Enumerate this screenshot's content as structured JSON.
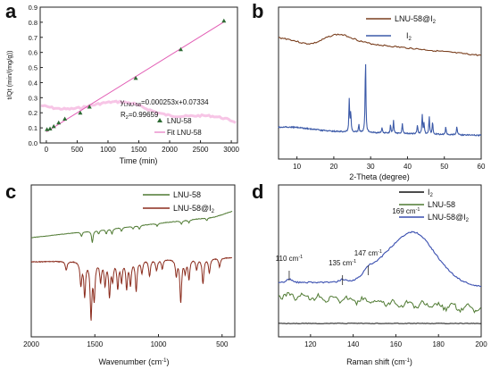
{
  "chart_data": [
    {
      "panel": "a",
      "type": "scatter",
      "xlabel": "Time (min)",
      "ylabel": "t/Qt (min/(mg/g))",
      "xlim": [
        -100,
        3100
      ],
      "ylim": [
        0,
        0.9
      ],
      "xticks": [
        0,
        500,
        1000,
        1500,
        2000,
        2500,
        3000
      ],
      "yticks": [
        0.0,
        0.1,
        0.2,
        0.3,
        0.4,
        0.5,
        0.6,
        0.7,
        0.8,
        0.9
      ],
      "equation": "y_LNU-58=0.000253x+0.07334",
      "equation_main": "y",
      "equation_sub": "LNU-58",
      "equation_rest": "=0.000253x+0.07334",
      "r2": "R2=0.99659",
      "r2_main": "R",
      "r2_sub": "2",
      "r2_rest": "=0.99659",
      "fit": {
        "slope": 0.000253,
        "intercept": 0.07334,
        "x": [
          0,
          2900
        ]
      },
      "series": [
        {
          "name": "LNU-58",
          "color": "#2e6b34",
          "x": [
            10,
            60,
            120,
            200,
            300,
            550,
            700,
            1450,
            2180,
            2880
          ],
          "y": [
            0.09,
            0.095,
            0.11,
            0.135,
            0.16,
            0.2,
            0.24,
            0.43,
            0.62,
            0.81
          ]
        },
        {
          "name": "Fit LNU-58",
          "color": "#e25db4"
        }
      ],
      "legend": "bottom-right",
      "watermark_color": "#f2a6d8"
    },
    {
      "panel": "b",
      "type": "line",
      "xlabel": "2-Theta (degree)",
      "xlim": [
        5,
        60
      ],
      "xticks": [
        10,
        20,
        30,
        40,
        50,
        60
      ],
      "series": [
        {
          "name": "LNU-58@I2",
          "name_main": "LNU-58@I",
          "name_sub": "2",
          "color": "#7a3f1e"
        },
        {
          "name": "I2",
          "name_main": "I",
          "name_sub": "2",
          "color": "#3c5aa8"
        }
      ],
      "legend": "top-right"
    },
    {
      "panel": "c",
      "type": "line",
      "xlabel": "Wavenumber (cm-1)",
      "xlabel_main": "Wavenumber (cm",
      "xlabel_sup": "-1",
      "xlabel_end": ")",
      "xlim": [
        2000,
        400
      ],
      "xticks": [
        2000,
        1500,
        1000,
        500
      ],
      "series": [
        {
          "name": "LNU-58",
          "color": "#4f7a32"
        },
        {
          "name": "LNU-58@I2",
          "name_main": "LNU-58@I",
          "name_sub": "2",
          "color": "#8b2c1d"
        }
      ],
      "legend": "top-right"
    },
    {
      "panel": "d",
      "type": "line",
      "xlabel": "Raman shift (cm-1)",
      "xlabel_main": "Raman shift (cm",
      "xlabel_sup": "-1",
      "xlabel_end": ")",
      "xlim": [
        105,
        200
      ],
      "xticks": [
        120,
        140,
        160,
        180,
        200
      ],
      "series": [
        {
          "name": "I2",
          "name_main": "I",
          "name_sub": "2",
          "color": "#111111"
        },
        {
          "name": "LNU-58",
          "color": "#4f7a32"
        },
        {
          "name": "LNU-58@I2",
          "name_main": "LNU-58@I",
          "name_sub": "2",
          "color": "#3a4fb0"
        }
      ],
      "annotations": [
        {
          "text": "110 cm-1",
          "main": "110 cm",
          "sup": "-1",
          "x": 110
        },
        {
          "text": "135 cm-1",
          "main": "135 cm",
          "sup": "-1",
          "x": 135
        },
        {
          "text": "147 cm-1",
          "main": "147 cm",
          "sup": "-1",
          "x": 147
        },
        {
          "text": "169 cm-1",
          "main": "169 cm",
          "sup": "-1",
          "x": 169
        }
      ],
      "legend": "top-right"
    }
  ],
  "panel_labels": {
    "a": "a",
    "b": "b",
    "c": "c",
    "d": "d"
  }
}
